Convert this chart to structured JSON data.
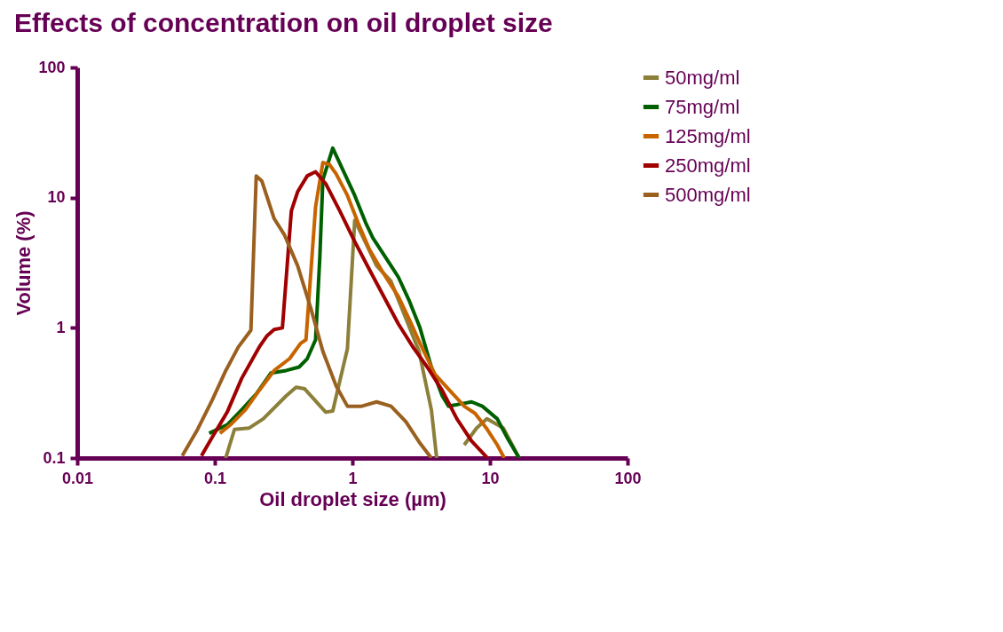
{
  "chart_data": {
    "type": "line",
    "title": "Effects of concentration on oil droplet size",
    "xlabel": "Oil droplet size (µm)",
    "ylabel": "Volume (%)",
    "log": "xy",
    "xlim": [
      0.01,
      100
    ],
    "ylim": [
      0.1,
      100
    ],
    "xticks": [
      0.01,
      0.1,
      1,
      10,
      100
    ],
    "yticks": [
      0.1,
      1,
      10,
      100
    ],
    "grid": false,
    "legend": "right",
    "marker": "none",
    "line_style": "solid",
    "series": [
      {
        "name": "50mg/ml",
        "color": "#8c7f3a",
        "x": [
          0.12,
          0.139,
          0.178,
          0.225,
          0.33,
          0.39,
          0.45,
          0.64,
          0.72,
          0.92,
          1.04,
          1.25,
          1.5,
          1.9,
          3.05,
          3.75,
          4.1,
          5.0,
          6.5,
          8.0,
          9.5,
          12.5,
          16.3
        ],
        "values": [
          0.1,
          0.166,
          0.17,
          0.2,
          0.3,
          0.35,
          0.34,
          0.225,
          0.23,
          0.69,
          6.7,
          4.5,
          3.0,
          2.3,
          0.66,
          0.235,
          0.1,
          null,
          0.126,
          0.17,
          0.2,
          0.17,
          0.1
        ]
      },
      {
        "name": "75mg/ml",
        "color": "#006000",
        "x": [
          0.091,
          0.123,
          0.157,
          0.2,
          0.256,
          0.33,
          0.41,
          0.47,
          0.54,
          0.58,
          0.61,
          0.72,
          1.04,
          1.25,
          1.41,
          1.91,
          2.16,
          2.6,
          3.1,
          3.75,
          4.5,
          5.0,
          6.1,
          7.35,
          8.8,
          11.3,
          13.5,
          16.3
        ],
        "values": [
          0.155,
          0.18,
          0.235,
          0.31,
          0.45,
          0.47,
          0.5,
          0.58,
          0.81,
          3.5,
          13.7,
          24,
          10.4,
          6.4,
          4.9,
          3.0,
          2.45,
          1.6,
          1.0,
          0.5,
          0.3,
          0.25,
          0.26,
          0.27,
          0.25,
          0.2,
          0.14,
          0.1
        ]
      },
      {
        "name": "125mg/ml",
        "color": "#c86400",
        "x": [
          0.109,
          0.13,
          0.167,
          0.21,
          0.27,
          0.35,
          0.42,
          0.46,
          0.54,
          0.61,
          0.68,
          0.76,
          0.92,
          1.1,
          1.33,
          1.69,
          2.16,
          2.6,
          3.1,
          3.98,
          5.1,
          6.5,
          7.8,
          9.4,
          11.3,
          12.7
        ],
        "values": [
          0.155,
          0.18,
          0.235,
          0.33,
          0.47,
          0.58,
          0.76,
          0.81,
          8.5,
          18.6,
          18,
          15.3,
          10.4,
          6.4,
          4.0,
          2.6,
          1.74,
          1.15,
          0.76,
          0.44,
          0.33,
          0.25,
          0.22,
          0.17,
          0.126,
          0.1
        ]
      },
      {
        "name": "250mg/ml",
        "color": "#a00000",
        "x": [
          0.08,
          0.096,
          0.123,
          0.157,
          0.21,
          0.24,
          0.27,
          0.31,
          0.36,
          0.4,
          0.47,
          0.54,
          0.64,
          0.81,
          1.04,
          1.33,
          1.69,
          2.16,
          2.76,
          3.5,
          4.5,
          5.75,
          7.35,
          9.6
        ],
        "values": [
          0.104,
          0.145,
          0.225,
          0.41,
          0.71,
          0.87,
          0.97,
          1.0,
          7.9,
          11.1,
          14.7,
          15.8,
          12.8,
          7.9,
          4.6,
          2.8,
          1.74,
          1.07,
          0.71,
          0.5,
          0.33,
          0.2,
          0.135,
          0.1
        ]
      },
      {
        "name": "500mg/ml",
        "color": "#9a6020",
        "x": [
          0.058,
          0.075,
          0.096,
          0.119,
          0.148,
          0.183,
          0.2,
          0.22,
          0.27,
          0.32,
          0.4,
          0.5,
          0.61,
          0.76,
          0.92,
          1.17,
          1.5,
          1.91,
          2.45,
          3.1,
          3.75
        ],
        "values": [
          0.104,
          0.166,
          0.28,
          0.46,
          0.71,
          0.96,
          14.7,
          13.4,
          6.9,
          5.2,
          3.0,
          1.4,
          0.66,
          0.36,
          0.25,
          0.25,
          0.27,
          0.25,
          0.19,
          0.13,
          0.1
        ]
      }
    ]
  }
}
